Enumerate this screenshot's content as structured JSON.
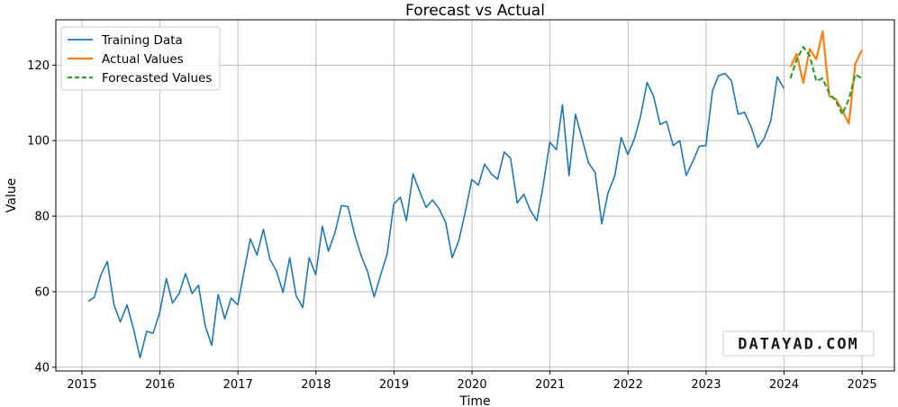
{
  "chart_data": {
    "type": "line",
    "title": "Forecast vs Actual",
    "xlabel": "Time",
    "ylabel": "Value",
    "xlim": [
      "2014-09-01",
      "2025-06-01"
    ],
    "ylim": [
      39,
      132
    ],
    "x_ticks": [
      "2015",
      "2016",
      "2017",
      "2018",
      "2019",
      "2020",
      "2021",
      "2022",
      "2023",
      "2024",
      "2025"
    ],
    "y_ticks": [
      40,
      60,
      80,
      100,
      120
    ],
    "grid": true,
    "legend_position": "top-left",
    "series": [
      {
        "name": "Training Data",
        "color": "#1f77b4",
        "style": "solid",
        "x": [
          "2015-01-31",
          "2015-02-28",
          "2015-03-31",
          "2015-04-30",
          "2015-05-31",
          "2015-06-30",
          "2015-07-31",
          "2015-08-31",
          "2015-09-30",
          "2015-10-31",
          "2015-11-30",
          "2015-12-31",
          "2016-01-31",
          "2016-02-29",
          "2016-03-31",
          "2016-04-30",
          "2016-05-31",
          "2016-06-30",
          "2016-07-31",
          "2016-08-31",
          "2016-09-30",
          "2016-10-31",
          "2016-11-30",
          "2016-12-31",
          "2017-01-31",
          "2017-02-28",
          "2017-03-31",
          "2017-04-30",
          "2017-05-31",
          "2017-06-30",
          "2017-07-31",
          "2017-08-31",
          "2017-09-30",
          "2017-10-31",
          "2017-11-30",
          "2017-12-31",
          "2018-01-31",
          "2018-02-28",
          "2018-03-31",
          "2018-04-30",
          "2018-05-31",
          "2018-06-30",
          "2018-07-31",
          "2018-08-31",
          "2018-09-30",
          "2018-10-31",
          "2018-11-30",
          "2018-12-31",
          "2019-01-31",
          "2019-02-28",
          "2019-03-31",
          "2019-04-30",
          "2019-05-31",
          "2019-06-30",
          "2019-07-31",
          "2019-08-31",
          "2019-09-30",
          "2019-10-31",
          "2019-11-30",
          "2019-12-31",
          "2020-01-31",
          "2020-02-29",
          "2020-03-31",
          "2020-04-30",
          "2020-05-31",
          "2020-06-30",
          "2020-07-31",
          "2020-08-31",
          "2020-09-30",
          "2020-10-31",
          "2020-11-30",
          "2020-12-31",
          "2021-01-31",
          "2021-02-28",
          "2021-03-31",
          "2021-04-30",
          "2021-05-31",
          "2021-06-30",
          "2021-07-31",
          "2021-08-31",
          "2021-09-30",
          "2021-10-31",
          "2021-11-30",
          "2021-12-31",
          "2022-01-31",
          "2022-02-28",
          "2022-03-31",
          "2022-04-30",
          "2022-05-31",
          "2022-06-30",
          "2022-07-31",
          "2022-08-31",
          "2022-09-30",
          "2022-10-31",
          "2022-11-30",
          "2022-12-31",
          "2023-01-31",
          "2023-02-28",
          "2023-03-31",
          "2023-04-30",
          "2023-05-31",
          "2023-06-30",
          "2023-07-31",
          "2023-08-31",
          "2023-09-30",
          "2023-10-31",
          "2023-11-30",
          "2023-12-31"
        ],
        "values": [
          57.5,
          58.5,
          64.5,
          68,
          56.5,
          52,
          56.5,
          50,
          42.5,
          49.5,
          49,
          54.5,
          63.5,
          57,
          59.5,
          64.8,
          59.5,
          61.7,
          51,
          45.8,
          59.3,
          52.8,
          58.3,
          56.5,
          65.8,
          74,
          69.7,
          76.5,
          68.5,
          65.5,
          59.8,
          69,
          59,
          55.8,
          69,
          64.5,
          77.3,
          70.7,
          75.6,
          82.8,
          82.5,
          75.3,
          69.6,
          65.2,
          58.6,
          64.5,
          70,
          83.2,
          85,
          78.8,
          91.2,
          86.7,
          82.3,
          84.3,
          82,
          78.3,
          69,
          73.5,
          81,
          89.7,
          88.2,
          93.8,
          91.2,
          89.8,
          97,
          95.3,
          83.5,
          85.8,
          81.6,
          78.8,
          88.2,
          99.6,
          97.6,
          109.5,
          90.7,
          107,
          100.5,
          94.1,
          91.6,
          78,
          86.3,
          90.7,
          100.8,
          96.3,
          100.5,
          106.3,
          115.4,
          111.8,
          104.3,
          105.1,
          98.7,
          100,
          90.8,
          94.5,
          98.5,
          98.7,
          113.2,
          117.2,
          117.8,
          115.8,
          107,
          107.5,
          103.6,
          98.2,
          100.6,
          105.3,
          116.9,
          113.8
        ]
      },
      {
        "name": "Actual Values",
        "color": "#ff7f0e",
        "style": "solid",
        "x": [
          "2024-01-31",
          "2024-02-29",
          "2024-03-31",
          "2024-04-30",
          "2024-05-31",
          "2024-06-30",
          "2024-07-31",
          "2024-08-31",
          "2024-09-30",
          "2024-10-31",
          "2024-11-30",
          "2024-12-31"
        ],
        "values": [
          119.5,
          123,
          115.3,
          124.3,
          121.5,
          129,
          111.8,
          111,
          108,
          104.5,
          120.3,
          124
        ]
      },
      {
        "name": "Forecasted Values",
        "color": "#2ca02c",
        "style": "dashed",
        "x": [
          "2024-01-31",
          "2024-02-29",
          "2024-03-31",
          "2024-04-30",
          "2024-05-31",
          "2024-06-30",
          "2024-07-31",
          "2024-08-31",
          "2024-09-30",
          "2024-10-31",
          "2024-11-30",
          "2024-12-31"
        ],
        "values": [
          116.5,
          121.5,
          124.8,
          122.5,
          115.8,
          116.5,
          112.5,
          110.5,
          107,
          111,
          117.5,
          116.5
        ]
      }
    ]
  },
  "watermark": "DATAYAD.COM"
}
